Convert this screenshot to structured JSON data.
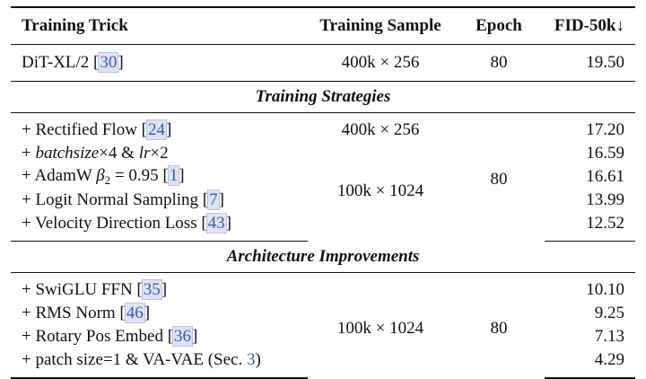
{
  "header": [
    "Training Trick",
    "Training Sample",
    "Epoch",
    "FID-50k↓"
  ],
  "baseline": {
    "trick": [
      {
        "text": "DiT-XL/2 ["
      },
      {
        "text": "30",
        "style": "ref"
      },
      {
        "text": "]"
      }
    ],
    "sample": "400k × 256",
    "epoch": "80",
    "fid": "19.50"
  },
  "sections": [
    {
      "title": "Training Strategies",
      "rows": [
        {
          "trick": [
            {
              "text": "+ Rectified Flow ["
            },
            {
              "text": "24",
              "style": "ref"
            },
            {
              "text": "]"
            }
          ],
          "fid": "17.20"
        },
        {
          "trick": [
            {
              "text": "+ "
            },
            {
              "text": "batchsize",
              "style": "italic"
            },
            {
              "text": "×4 & "
            },
            {
              "text": "lr",
              "style": "italic"
            },
            {
              "text": "×2"
            }
          ],
          "fid": "16.59"
        },
        {
          "trick": [
            {
              "text": "+ AdamW "
            },
            {
              "text": "β",
              "style": "italic"
            },
            {
              "text": "2",
              "style": "sub"
            },
            {
              "text": " = 0.95 ["
            },
            {
              "text": "1",
              "style": "ref"
            },
            {
              "text": "]"
            }
          ],
          "fid": "16.61"
        },
        {
          "trick": [
            {
              "text": "+ Logit Normal Sampling ["
            },
            {
              "text": "7",
              "style": "ref"
            },
            {
              "text": "]"
            }
          ],
          "fid": "13.99"
        },
        {
          "trick": [
            {
              "text": "+ Velocity Direction Loss ["
            },
            {
              "text": "43",
              "style": "ref"
            },
            {
              "text": "]"
            }
          ],
          "fid": "12.52"
        }
      ],
      "samples": [
        {
          "text": "400k × 256",
          "rowspan": 1
        },
        {
          "text": "100k × 1024",
          "rowspan": 4
        }
      ],
      "epochs": [
        {
          "text": "80",
          "rowspan": 5
        }
      ]
    },
    {
      "title": "Architecture Improvements",
      "rows": [
        {
          "trick": [
            {
              "text": "+ SwiGLU FFN ["
            },
            {
              "text": "35",
              "style": "ref"
            },
            {
              "text": "]"
            }
          ],
          "fid": "10.10"
        },
        {
          "trick": [
            {
              "text": "+ RMS Norm ["
            },
            {
              "text": "46",
              "style": "ref"
            },
            {
              "text": "]"
            }
          ],
          "fid": "9.25"
        },
        {
          "trick": [
            {
              "text": "+ Rotary Pos Embed ["
            },
            {
              "text": "36",
              "style": "ref"
            },
            {
              "text": "]"
            }
          ],
          "fid": "7.13"
        },
        {
          "trick": [
            {
              "text": "+ patch size=1 & VA-VAE (Sec. "
            },
            {
              "text": "3",
              "style": "link"
            },
            {
              "text": ")"
            }
          ],
          "fid": "4.29"
        }
      ],
      "samples": [
        {
          "text": "100k × 1024",
          "rowspan": 4
        }
      ],
      "epochs": [
        {
          "text": "80",
          "rowspan": 4
        }
      ]
    }
  ]
}
